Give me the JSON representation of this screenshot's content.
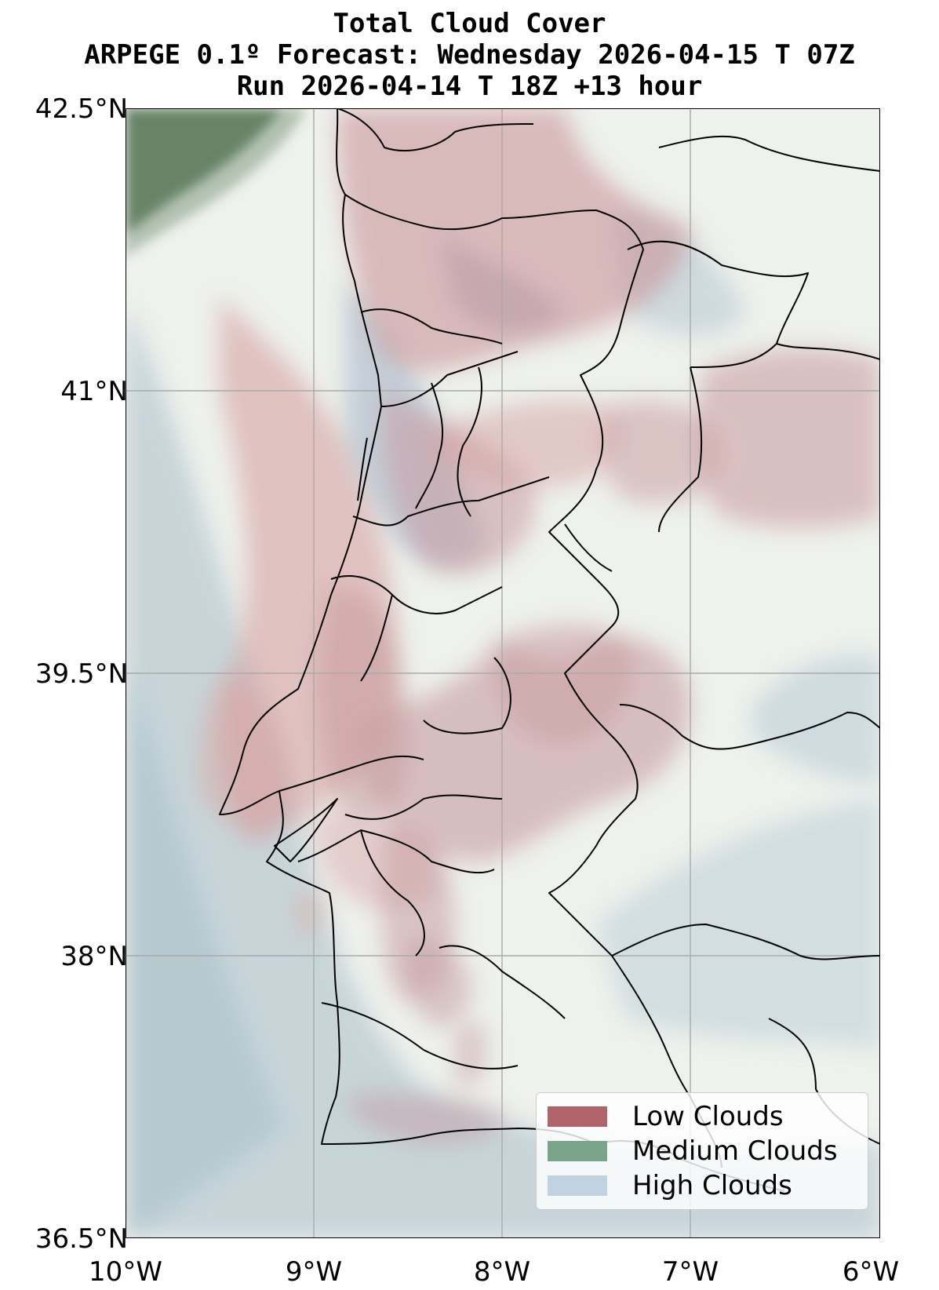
{
  "title": {
    "line1": "Total Cloud Cover",
    "line2": "ARPEGE 0.1º Forecast: Wednesday 2026-04-15 T 07Z",
    "line3": "Run 2026-04-14 T 18Z +13 hour"
  },
  "axes": {
    "y_ticks": [
      "42.5°N",
      "41°N",
      "39.5°N",
      "38°N",
      "36.5°N"
    ],
    "x_ticks": [
      "10°W",
      "9°W",
      "8°W",
      "7°W",
      "6°W"
    ],
    "lat_range": [
      36.5,
      42.5
    ],
    "lon_range": [
      -10,
      -6
    ],
    "grid": true
  },
  "legend": {
    "placement": "bottom-right",
    "items": [
      {
        "label": "Low Clouds",
        "color": "#b0636b"
      },
      {
        "label": "Medium Clouds",
        "color": "#7aa58a"
      },
      {
        "label": "High Clouds",
        "color": "#c3d2df"
      }
    ]
  },
  "colors": {
    "background_clear": "#eef1ec",
    "low": "#b0636b",
    "medium": "#4f6b4f",
    "high": "#a9c0cc",
    "borders": "#000000",
    "grid": "#aaaaaa"
  }
}
